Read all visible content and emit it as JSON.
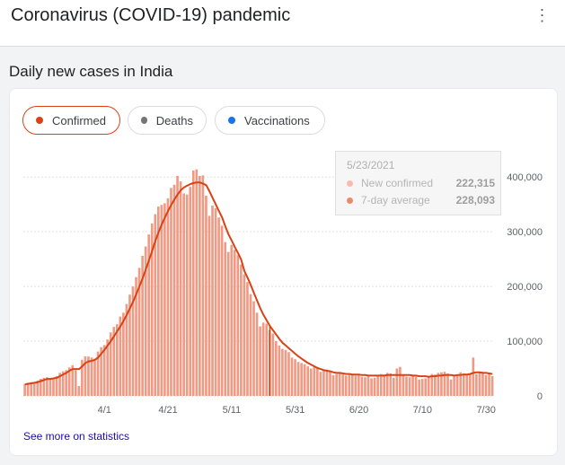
{
  "app": {
    "title": "Coronavirus (COVID-19) pandemic",
    "more_label": "⋮"
  },
  "section": {
    "title": "Daily new cases in India"
  },
  "chips": [
    {
      "label": "Confirmed",
      "color": "#d84315",
      "active": true
    },
    {
      "label": "Deaths",
      "color": "#757575",
      "active": false
    },
    {
      "label": "Vaccinations",
      "color": "#1a73e8",
      "active": false
    }
  ],
  "tooltip": {
    "date": "5/23/2021",
    "rows": [
      {
        "label": "New confirmed",
        "value": "222,315",
        "color": "#f8bbb0"
      },
      {
        "label": "7-day average",
        "value": "228,093",
        "color": "#e98a6f"
      }
    ]
  },
  "links": {
    "see_more": "See more on statistics"
  },
  "colors": {
    "bar": "#ef9a84",
    "line": "#d84315",
    "grid": "#e0e0e0",
    "cursor": "#d84315"
  },
  "chart_data": {
    "type": "bar",
    "title": "",
    "xlabel": "",
    "ylabel": "",
    "ylim": [
      0,
      420000
    ],
    "y_ticks": [
      0,
      100000,
      200000,
      300000,
      400000
    ],
    "y_tick_labels": [
      "0",
      "100,000",
      "200,000",
      "300,000",
      "400,000"
    ],
    "x_tick_labels": [
      "4/1",
      "4/21",
      "5/11",
      "5/31",
      "6/20",
      "7/10",
      "7/30"
    ],
    "x_tick_offsets": [
      14,
      34,
      54,
      74,
      94,
      114,
      134
    ],
    "start_offset": -11,
    "grid": true,
    "cursor_offset": 66,
    "series": [
      {
        "name": "New confirmed",
        "values": [
          22000,
          24000,
          25000,
          23000,
          28000,
          31000,
          33000,
          34000,
          30000,
          32000,
          36000,
          42000,
          45000,
          47000,
          52000,
          56000,
          47000,
          18000,
          66000,
          72000,
          72000,
          70000,
          68000,
          81000,
          89000,
          93000,
          103000,
          116000,
          126000,
          131000,
          145000,
          152000,
          168000,
          185000,
          200000,
          217000,
          234000,
          256000,
          273000,
          295000,
          315000,
          332000,
          346000,
          349000,
          352000,
          361000,
          380000,
          386000,
          402000,
          392000,
          370000,
          368000,
          382000,
          412000,
          414000,
          402000,
          403000,
          366000,
          329000,
          348000,
          343000,
          326000,
          311000,
          281000,
          263000,
          276000,
          267000,
          257000,
          240000,
          222315,
          208000,
          186000,
          173000,
          152000,
          127000,
          134000,
          132000,
          120000,
          114000,
          100000,
          92000,
          86000,
          84000,
          80000,
          70000,
          67000,
          62000,
          60000,
          58000,
          54000,
          50000,
          53000,
          50000,
          44000,
          46000,
          48000,
          44000,
          38000,
          40000,
          42000,
          39000,
          37000,
          38000,
          39000,
          37000,
          40000,
          35000,
          34000,
          36000,
          32000,
          33000,
          37000,
          40000,
          39000,
          42000,
          41000,
          33000,
          50000,
          53000,
          38000,
          35000,
          34000,
          38000,
          35000,
          30000,
          31000,
          32000,
          36000,
          40000,
          39000,
          42000,
          43000,
          44000,
          41000,
          30000,
          38000,
          39000,
          43000,
          41000,
          40000,
          41000,
          70000,
          40000,
          44000,
          42000,
          38000,
          40000,
          36000
        ],
        "color": "#ef9a84"
      },
      {
        "name": "7-day average",
        "values": [
          21000,
          22000,
          23000,
          24000,
          25000,
          27000,
          29000,
          31000,
          31000,
          32000,
          33000,
          36000,
          39000,
          42000,
          46000,
          49000,
          49000,
          49000,
          54000,
          60000,
          63000,
          64000,
          66000,
          70000,
          77000,
          84000,
          92000,
          100000,
          109000,
          118000,
          127000,
          137000,
          148000,
          160000,
          172000,
          186000,
          200000,
          215000,
          231000,
          248000,
          265000,
          283000,
          299000,
          313000,
          326000,
          338000,
          349000,
          359000,
          368000,
          376000,
          381000,
          384000,
          387000,
          389000,
          390000,
          390000,
          388000,
          385000,
          374000,
          362000,
          350000,
          338000,
          326000,
          310000,
          295000,
          284000,
          272000,
          261000,
          249000,
          228093,
          216000,
          203000,
          188000,
          174000,
          160000,
          148000,
          138000,
          128000,
          120000,
          112000,
          104000,
          97000,
          92000,
          87000,
          82000,
          77000,
          72000,
          68000,
          64000,
          60000,
          57000,
          54000,
          51000,
          49000,
          47000,
          46000,
          45000,
          43000,
          42000,
          42000,
          41000,
          40000,
          40000,
          39000,
          39000,
          39000,
          38000,
          38000,
          37000,
          37000,
          37000,
          37000,
          37000,
          37000,
          38000,
          38000,
          38000,
          38000,
          38000,
          38000,
          38000,
          38000,
          37000,
          37000,
          36000,
          36000,
          36000,
          35000,
          36000,
          36000,
          37000,
          37000,
          38000,
          38000,
          38000,
          37000,
          38000,
          38000,
          39000,
          39000,
          40000,
          42000,
          43000,
          43000,
          42000,
          42000,
          41000,
          40000
        ],
        "color": "#d84315"
      }
    ]
  }
}
